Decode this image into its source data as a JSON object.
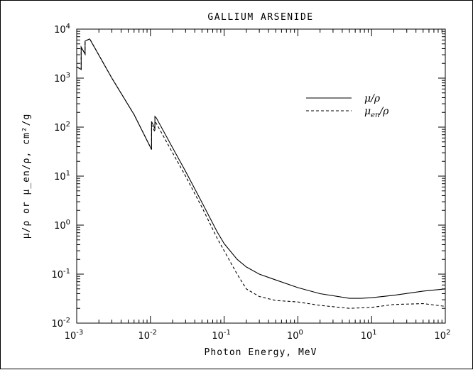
{
  "chart_data": {
    "type": "line",
    "title": "GALLIUM ARSENIDE",
    "xlabel": "Photon Energy, MeV",
    "ylabel": "μ/ρ or μ_en/ρ, cm²/g",
    "xscale": "log",
    "yscale": "log",
    "xlim": [
      0.001,
      100
    ],
    "ylim": [
      0.01,
      10000
    ],
    "x_tick_values": [
      0.001,
      0.01,
      0.1,
      1,
      10,
      100
    ],
    "x_tick_labels": [
      {
        "base": "10",
        "exp": "-3"
      },
      {
        "base": "10",
        "exp": "-2"
      },
      {
        "base": "10",
        "exp": "-1"
      },
      {
        "base": "10",
        "exp": "0"
      },
      {
        "base": "10",
        "exp": "1"
      },
      {
        "base": "10",
        "exp": "2"
      }
    ],
    "y_tick_values": [
      0.01,
      0.1,
      1,
      10,
      100,
      1000,
      10000
    ],
    "y_tick_labels": [
      {
        "base": "10",
        "exp": "-2"
      },
      {
        "base": "10",
        "exp": "-1"
      },
      {
        "base": "10",
        "exp": "0"
      },
      {
        "base": "10",
        "exp": "1"
      },
      {
        "base": "10",
        "exp": "2"
      },
      {
        "base": "10",
        "exp": "3"
      },
      {
        "base": "10",
        "exp": "4"
      }
    ],
    "grid": false,
    "legend_position": "top-right",
    "series": [
      {
        "name": "μ/ρ",
        "style": "solid",
        "x": [
          0.001,
          0.00115,
          0.00115,
          0.0013,
          0.0013,
          0.0015,
          0.003,
          0.006,
          0.01036,
          0.01036,
          0.0115,
          0.0115,
          0.012,
          0.02,
          0.03,
          0.05,
          0.08,
          0.1,
          0.15,
          0.2,
          0.3,
          0.5,
          1,
          2,
          5,
          7,
          10,
          20,
          50,
          100
        ],
        "y": [
          1700,
          1500,
          4300,
          3100,
          5700,
          6300,
          1000,
          180,
          35,
          130,
          93,
          165,
          155,
          38,
          12.5,
          2.9,
          0.74,
          0.42,
          0.2,
          0.14,
          0.1,
          0.076,
          0.053,
          0.04,
          0.032,
          0.032,
          0.033,
          0.037,
          0.045,
          0.05
        ]
      },
      {
        "name": "μ_en/ρ",
        "style": "dashed",
        "x": [
          0.001,
          0.00115,
          0.00115,
          0.0013,
          0.0013,
          0.0015,
          0.003,
          0.006,
          0.01036,
          0.01036,
          0.0115,
          0.0115,
          0.012,
          0.02,
          0.03,
          0.05,
          0.08,
          0.1,
          0.15,
          0.2,
          0.3,
          0.5,
          1,
          2,
          5,
          10,
          20,
          50,
          100
        ],
        "y": [
          1700,
          1500,
          4300,
          3100,
          5700,
          6300,
          1000,
          180,
          35,
          110,
          80,
          130,
          120,
          30,
          10,
          2.3,
          0.55,
          0.3,
          0.1,
          0.05,
          0.035,
          0.029,
          0.027,
          0.023,
          0.02,
          0.021,
          0.024,
          0.025,
          0.022
        ]
      }
    ],
    "legend": {
      "entries": [
        {
          "symbol": "μ",
          "subscript": "",
          "suffix": "/ρ"
        },
        {
          "symbol": "μ",
          "subscript": "en",
          "suffix": "/ρ"
        }
      ]
    }
  }
}
